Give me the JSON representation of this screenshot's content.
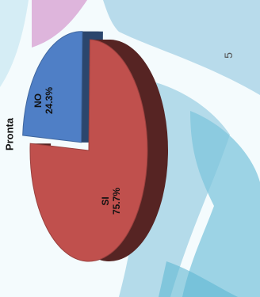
{
  "page": {
    "page_number": "5"
  },
  "chart_data": {
    "type": "pie",
    "title": "Pronta",
    "categories": [
      "NO",
      "SI"
    ],
    "values": [
      24.3,
      75.7
    ],
    "value_labels": [
      "24.3%",
      "75.7%"
    ],
    "colors": {
      "NO": "#4f7fc6",
      "SI": "#c0504d"
    },
    "legend": "none",
    "three_d": true,
    "exploded": "NO"
  }
}
